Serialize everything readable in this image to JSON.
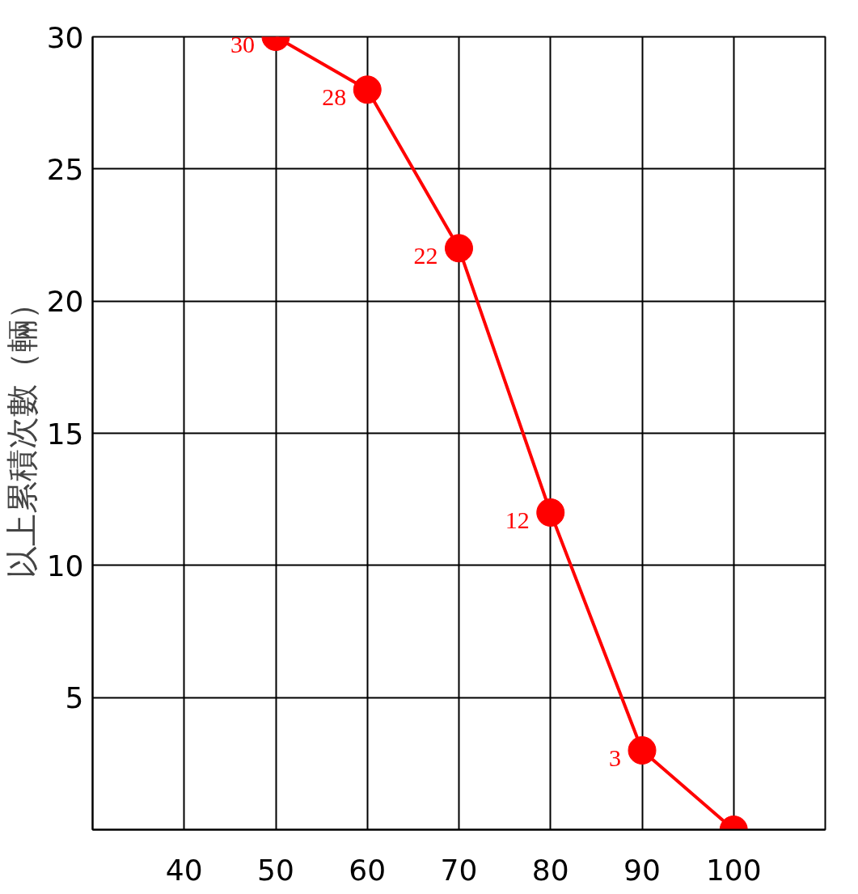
{
  "chart_data": {
    "type": "line",
    "ylabel": "以上累積次數（輛）",
    "x": [
      50,
      60,
      70,
      80,
      90,
      100
    ],
    "series": [
      {
        "color": "#ff0000",
        "values": [
          30,
          28,
          22,
          12,
          3,
          0
        ],
        "value_labels": [
          "30",
          "28",
          "22",
          "12",
          "3",
          null
        ]
      }
    ],
    "xlim": [
      30,
      110
    ],
    "xticks": [
      40,
      50,
      60,
      70,
      80,
      90,
      100
    ],
    "ylim": [
      0,
      30
    ],
    "yticks": [
      5,
      10,
      15,
      20,
      25,
      30
    ],
    "grid": true,
    "marker": "circle",
    "line_style": "solid"
  }
}
